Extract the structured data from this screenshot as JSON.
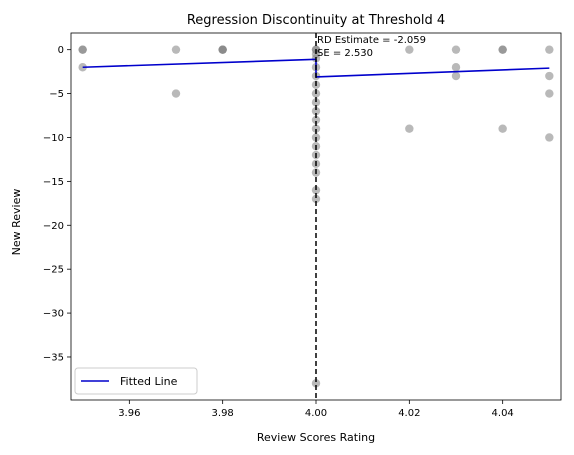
{
  "chart_data": {
    "type": "scatter",
    "title": "Regression Discontinuity at Threshold 4",
    "xlabel": "Review Scores Rating",
    "ylabel": "New Review",
    "xlim": [
      3.9475,
      4.0525
    ],
    "ylim": [
      -39.9,
      1.9
    ],
    "x_ticks": [
      3.96,
      3.98,
      4.0,
      4.02,
      4.04
    ],
    "x_tick_labels": [
      "3.96",
      "3.98",
      "4.00",
      "4.02",
      "4.04"
    ],
    "y_ticks": [
      0,
      -5,
      -10,
      -15,
      -20,
      -25,
      -30,
      -35
    ],
    "y_tick_labels": [
      "0",
      "−5",
      "−10",
      "−15",
      "−20",
      "−25",
      "−30",
      "−35"
    ],
    "threshold": 4.0,
    "threshold_style": "dashed-black",
    "points": [
      [
        3.95,
        0
      ],
      [
        3.95,
        0
      ],
      [
        3.95,
        -2
      ],
      [
        3.97,
        0
      ],
      [
        3.97,
        -5
      ],
      [
        3.98,
        0
      ],
      [
        3.98,
        0
      ],
      [
        3.98,
        0
      ],
      [
        4.0,
        0
      ],
      [
        4.0,
        0
      ],
      [
        4.0,
        -0.5
      ],
      [
        4.0,
        -1
      ],
      [
        4.0,
        -2
      ],
      [
        4.0,
        -3
      ],
      [
        4.0,
        -4
      ],
      [
        4.0,
        -5
      ],
      [
        4.0,
        -6
      ],
      [
        4.0,
        -7
      ],
      [
        4.0,
        -8
      ],
      [
        4.0,
        -9
      ],
      [
        4.0,
        -10
      ],
      [
        4.0,
        -11
      ],
      [
        4.0,
        -12
      ],
      [
        4.0,
        -13
      ],
      [
        4.0,
        -14
      ],
      [
        4.0,
        -16
      ],
      [
        4.0,
        -17
      ],
      [
        4.0,
        -38
      ],
      [
        4.02,
        0
      ],
      [
        4.02,
        -9
      ],
      [
        4.03,
        0
      ],
      [
        4.03,
        -2
      ],
      [
        4.03,
        -3
      ],
      [
        4.04,
        0
      ],
      [
        4.04,
        0
      ],
      [
        4.04,
        -9
      ],
      [
        4.05,
        0
      ],
      [
        4.05,
        -3
      ],
      [
        4.05,
        -5
      ],
      [
        4.05,
        -10
      ]
    ],
    "point_color": "#808080",
    "fitted_segments": [
      {
        "x": [
          3.95,
          4.0
        ],
        "y": [
          -2.0,
          -1.1
        ]
      },
      {
        "x": [
          4.0,
          4.0
        ],
        "y": [
          -1.1,
          -3.1
        ]
      },
      {
        "x": [
          4.0,
          4.05
        ],
        "y": [
          -3.1,
          -2.1
        ]
      }
    ],
    "line_color": "#0000cc",
    "legend": {
      "entries": [
        "Fitted Line"
      ],
      "placement": "lower-left"
    },
    "annotation": {
      "line1": "RD Estimate = -2.059",
      "line2": "SE = 2.530"
    },
    "grid": false
  }
}
